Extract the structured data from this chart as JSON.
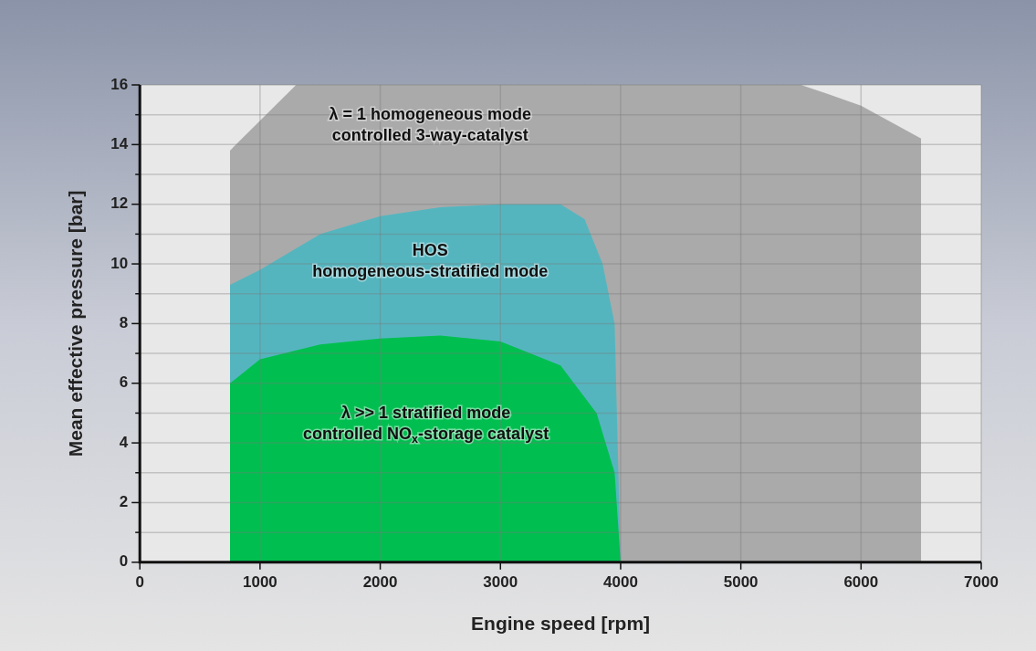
{
  "chart_data": {
    "type": "area",
    "xlabel": "Engine speed [rpm]",
    "ylabel": "Mean effective pressure [bar]",
    "xlim": [
      0,
      7000
    ],
    "xticks": [
      0,
      1000,
      2000,
      3000,
      4000,
      5000,
      6000,
      7000
    ],
    "ylim": [
      0,
      16
    ],
    "yticks": [
      0,
      {
        "value": 1,
        "label": null
      },
      2,
      {
        "value": 3,
        "label": null
      },
      4,
      {
        "value": 5,
        "label": null
      },
      6,
      {
        "value": 7,
        "label": null
      },
      8,
      {
        "value": 9,
        "label": null
      },
      10,
      {
        "value": 11,
        "label": null
      },
      12,
      {
        "value": 13,
        "label": null
      },
      14,
      {
        "value": 15,
        "label": null
      },
      16
    ],
    "grid": true,
    "legend": false,
    "series": [
      {
        "color": "#aaaaaa",
        "x": [
          750,
          750,
          1300,
          5500,
          5720,
          6000,
          6500,
          6500
        ],
        "values": [
          0,
          13.8,
          16,
          16,
          15.7,
          15.3,
          14.2,
          0
        ]
      },
      {
        "color": "#55b5bf",
        "x": [
          750,
          750,
          1000,
          1500,
          2000,
          2500,
          3000,
          3500,
          3700,
          3850,
          3950,
          4000
        ],
        "values": [
          0,
          9.3,
          9.8,
          11,
          11.6,
          11.9,
          12,
          12,
          11.5,
          10,
          8,
          0
        ]
      },
      {
        "color": "#00bf50",
        "x": [
          750,
          750,
          1000,
          1500,
          2000,
          2500,
          3000,
          3500,
          3800,
          3950,
          4000
        ],
        "values": [
          0,
          6,
          6.8,
          7.3,
          7.5,
          7.6,
          7.4,
          6.6,
          5,
          3,
          0
        ]
      }
    ],
    "annotations": [
      "λ = 1 homogeneous mode\ncontrolled 3-way-catalyst",
      "HOS\nhomogeneous-stratified mode",
      "λ >> 1 stratified mode\ncontrolled NO$_{x}$-storage catalyst"
    ]
  }
}
